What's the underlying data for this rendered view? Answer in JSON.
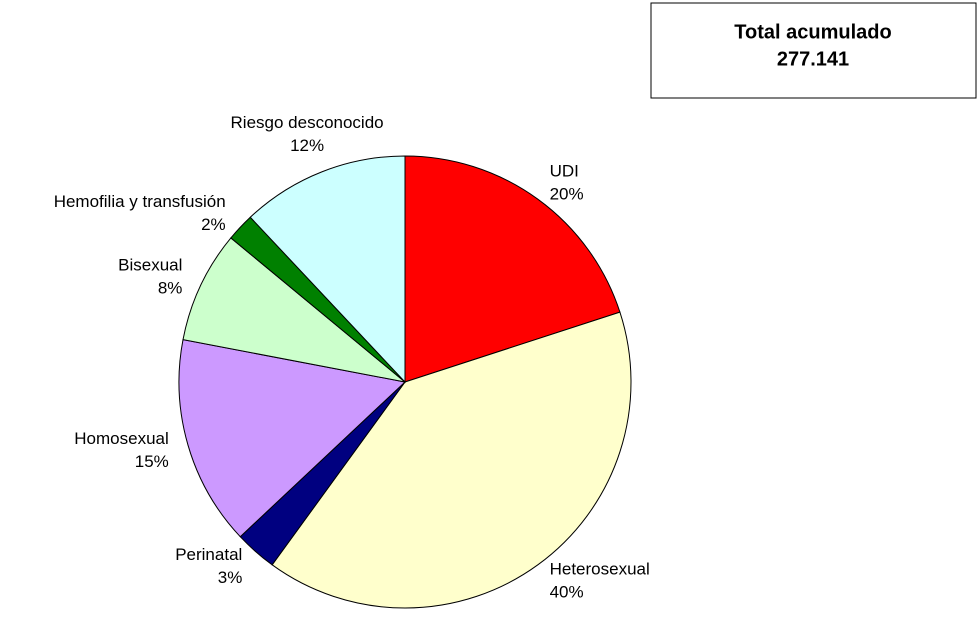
{
  "chart_data": {
    "type": "pie",
    "categories": [
      "UDI",
      "Heterosexual",
      "Perinatal",
      "Homosexual",
      "Bisexual",
      "Hemofilia y transfusión",
      "Riesgo desconocido"
    ],
    "values": [
      20,
      40,
      3,
      15,
      8,
      2,
      12
    ],
    "value_labels": [
      "20%",
      "40%",
      "3%",
      "15%",
      "8%",
      "2%",
      "12%"
    ],
    "colors": [
      "#ff0000",
      "#ffffcc",
      "#000080",
      "#cc99ff",
      "#ccffcc",
      "#008000",
      "#ccffff"
    ],
    "annotation": {
      "title": "Total acumulado",
      "value": "277.141"
    }
  }
}
